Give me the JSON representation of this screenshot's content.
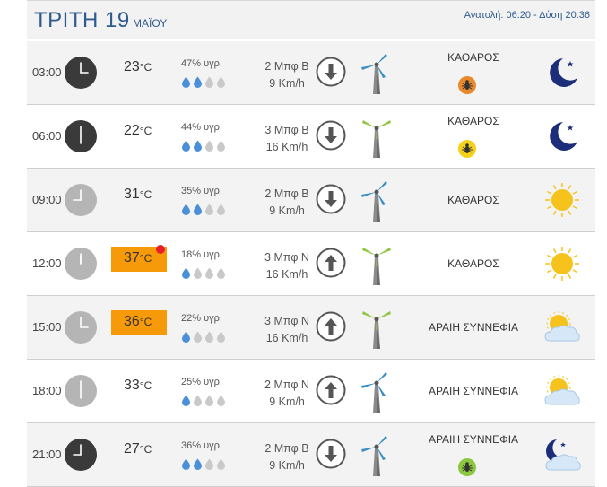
{
  "header": {
    "day": "ΤΡΙΤΗ 19",
    "month": "ΜΑΪΟΥ",
    "sun": "Ανατολή: 06:20  -  Δύση 20:36"
  },
  "colors": {
    "title": "#2f5b8f",
    "hot_temp_bg": "#f79a09",
    "hot_marker": "#e8202a",
    "clock_night": "#3a3a3a",
    "clock_day": "#b5b5b5",
    "turbine_blue": "#3a8fc4",
    "turbine_green": "#8dc63f",
    "drop_blue": "#4a90d9",
    "drop_grey": "#c9c9c9",
    "sun": "#f6c21c",
    "moon": "#1c2d7a"
  },
  "rows": [
    {
      "time": "03:00",
      "hour": 3,
      "clock": "dark",
      "temp": "23",
      "unit": "°C",
      "hot": false,
      "hot_marker": false,
      "humidity": "47% υγρ.",
      "drops_filled": 2,
      "wind_force": "2 Μπφ Β",
      "wind_speed": "9 Km/h",
      "arrow": "down-arrow-icon",
      "turbine_color": "blue",
      "condition": "ΚΑΘΑΡΟΣ",
      "pollen": "pollen-icon-orange",
      "weather_icon": "moon-icon"
    },
    {
      "time": "06:00",
      "hour": 6,
      "clock": "dark",
      "temp": "22",
      "unit": "°C",
      "hot": false,
      "hot_marker": false,
      "humidity": "44% υγρ.",
      "drops_filled": 2,
      "wind_force": "3 Μπφ Β",
      "wind_speed": "16 Km/h",
      "arrow": "down-arrow-icon",
      "turbine_color": "green",
      "condition": "ΚΑΘΑΡΟΣ",
      "pollen": "pollen-icon-yellow",
      "weather_icon": "moon-icon"
    },
    {
      "time": "09:00",
      "hour": 9,
      "clock": "light",
      "temp": "31",
      "unit": "°C",
      "hot": false,
      "hot_marker": false,
      "humidity": "35% υγρ.",
      "drops_filled": 2,
      "wind_force": "2 Μπφ Β",
      "wind_speed": "9 Km/h",
      "arrow": "down-arrow-icon",
      "turbine_color": "blue",
      "condition": "ΚΑΘΑΡΟΣ",
      "pollen": "",
      "weather_icon": "sun-icon"
    },
    {
      "time": "12:00",
      "hour": 12,
      "clock": "light",
      "temp": "37",
      "unit": "°C",
      "hot": true,
      "hot_marker": true,
      "humidity": "18% υγρ.",
      "drops_filled": 1,
      "wind_force": "3 Μπφ Ν",
      "wind_speed": "16 Km/h",
      "arrow": "up-arrow-icon",
      "turbine_color": "green",
      "condition": "ΚΑΘΑΡΟΣ",
      "pollen": "",
      "weather_icon": "sun-icon"
    },
    {
      "time": "15:00",
      "hour": 3,
      "clock": "light",
      "temp": "36",
      "unit": "°C",
      "hot": true,
      "hot_marker": false,
      "humidity": "22% υγρ.",
      "drops_filled": 1,
      "wind_force": "3 Μπφ Ν",
      "wind_speed": "16 Km/h",
      "arrow": "up-arrow-icon",
      "turbine_color": "green",
      "condition": "ΑΡΑΙΗ ΣΥΝΝΕΦΙΑ",
      "pollen": "",
      "weather_icon": "sun-cloud-icon"
    },
    {
      "time": "18:00",
      "hour": 6,
      "clock": "light",
      "temp": "33",
      "unit": "°C",
      "hot": false,
      "hot_marker": false,
      "humidity": "25% υγρ.",
      "drops_filled": 1,
      "wind_force": "2 Μπφ Ν",
      "wind_speed": "9 Km/h",
      "arrow": "up-arrow-icon",
      "turbine_color": "blue",
      "condition": "ΑΡΑΙΗ ΣΥΝΝΕΦΙΑ",
      "pollen": "",
      "weather_icon": "sun-cloud-icon"
    },
    {
      "time": "21:00",
      "hour": 9,
      "clock": "dark",
      "temp": "27",
      "unit": "°C",
      "hot": false,
      "hot_marker": false,
      "humidity": "36% υγρ.",
      "drops_filled": 2,
      "wind_force": "2 Μπφ Β",
      "wind_speed": "9 Km/h",
      "arrow": "down-arrow-icon",
      "turbine_color": "blue",
      "condition": "ΑΡΑΙΗ ΣΥΝΝΕΦΙΑ",
      "pollen": "pollen-icon-green",
      "weather_icon": "moon-cloud-icon"
    }
  ]
}
